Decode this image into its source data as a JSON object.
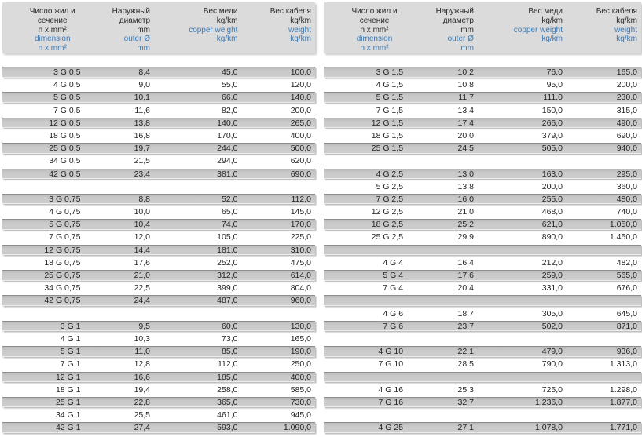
{
  "colors": {
    "page_background": "#ffffff",
    "header_background": "#dbdbdb",
    "shaded_row": "#c8c8c8",
    "shaded_row_top_border": "#8d8d8d",
    "text": "#242424",
    "accent_blue": "#3d79b3"
  },
  "header": {
    "columns": [
      {
        "black": [
          "Число жил и",
          "сечение",
          "n x mm²"
        ],
        "blue": [
          "dimension",
          "n x mm²"
        ]
      },
      {
        "black": [
          "Наружный",
          "диаметр",
          "mm"
        ],
        "blue": [
          "outer Ø",
          "mm"
        ]
      },
      {
        "black": [
          "Вес меди",
          "kg/km"
        ],
        "blue": [
          "copper weight",
          "kg/km"
        ]
      },
      {
        "black": [
          "Вес кабеля",
          "kg/km"
        ],
        "blue": [
          "weight",
          "kg/km"
        ]
      }
    ]
  },
  "tables": [
    {
      "name": "left",
      "rows": [
        [
          "3 G 0,5",
          "8,4",
          "45,0",
          "100,0"
        ],
        [
          "4 G 0,5",
          "9,0",
          "55,0",
          "120,0"
        ],
        [
          "5 G 0,5",
          "10,1",
          "66,0",
          "140,0"
        ],
        [
          "7 G 0,5",
          "11,6",
          "82,0",
          "200,0"
        ],
        [
          "12 G 0,5",
          "13,8",
          "140,0",
          "265,0"
        ],
        [
          "18 G 0,5",
          "16,8",
          "170,0",
          "400,0"
        ],
        [
          "25 G 0,5",
          "19,7",
          "244,0",
          "500,0"
        ],
        [
          "34 G 0,5",
          "21,5",
          "294,0",
          "620,0"
        ],
        [
          "42 G 0,5",
          "23,4",
          "381,0",
          "690,0"
        ],
        null,
        [
          "3 G 0,75",
          "8,8",
          "52,0",
          "112,0"
        ],
        [
          "4 G 0,75",
          "10,0",
          "65,0",
          "145,0"
        ],
        [
          "5 G 0,75",
          "10,4",
          "74,0",
          "170,0"
        ],
        [
          "7 G 0,75",
          "12,0",
          "105,0",
          "225,0"
        ],
        [
          "12 G 0,75",
          "14,4",
          "181,0",
          "310,0"
        ],
        [
          "18 G 0,75",
          "17,6",
          "252,0",
          "475,0"
        ],
        [
          "25 G 0,75",
          "21,0",
          "312,0",
          "614,0"
        ],
        [
          "34 G 0,75",
          "22,5",
          "399,0",
          "804,0"
        ],
        [
          "42 G 0,75",
          "24,4",
          "487,0",
          "960,0"
        ],
        null,
        [
          "3 G 1",
          "9,5",
          "60,0",
          "130,0"
        ],
        [
          "4 G 1",
          "10,3",
          "73,0",
          "165,0"
        ],
        [
          "5 G 1",
          "11,0",
          "85,0",
          "190,0"
        ],
        [
          "7 G 1",
          "12,8",
          "112,0",
          "250,0"
        ],
        [
          "12 G 1",
          "16,6",
          "185,0",
          "400,0"
        ],
        [
          "18 G 1",
          "19,4",
          "258,0",
          "585,0"
        ],
        [
          "25 G 1",
          "22,8",
          "365,0",
          "730,0"
        ],
        [
          "34 G 1",
          "25,5",
          "461,0",
          "945,0"
        ],
        [
          "42 G 1",
          "27,4",
          "593,0",
          "1.090,0"
        ]
      ]
    },
    {
      "name": "right",
      "rows": [
        [
          "3 G 1,5",
          "10,2",
          "76,0",
          "165,0"
        ],
        [
          "4 G 1,5",
          "10,8",
          "95,0",
          "200,0"
        ],
        [
          "5 G 1,5",
          "11,7",
          "111,0",
          "230,0"
        ],
        [
          "7 G 1,5",
          "13,4",
          "150,0",
          "315,0"
        ],
        [
          "12 G 1,5",
          "17,4",
          "266,0",
          "490,0"
        ],
        [
          "18 G 1,5",
          "20,0",
          "379,0",
          "690,0"
        ],
        [
          "25 G 1,5",
          "24,5",
          "505,0",
          "940,0"
        ],
        null,
        [
          "4 G 2,5",
          "13,0",
          "163,0",
          "295,0"
        ],
        [
          "5 G 2,5",
          "13,8",
          "200,0",
          "360,0"
        ],
        [
          "7 G 2,5",
          "16,0",
          "255,0",
          "480,0"
        ],
        [
          "12 G 2,5",
          "21,0",
          "468,0",
          "740,0"
        ],
        [
          "18 G 2,5",
          "25,2",
          "621,0",
          "1.050,0"
        ],
        [
          "25 G 2,5",
          "29,9",
          "890,0",
          "1.450,0"
        ],
        null,
        [
          "4 G 4",
          "16,4",
          "212,0",
          "482,0"
        ],
        [
          "5 G 4",
          "17,6",
          "259,0",
          "565,0"
        ],
        [
          "7 G 4",
          "20,4",
          "331,0",
          "676,0"
        ],
        null,
        [
          "4 G 6",
          "18,7",
          "305,0",
          "645,0"
        ],
        [
          "7 G 6",
          "23,7",
          "502,0",
          "871,0"
        ],
        null,
        [
          "4 G 10",
          "22,1",
          "479,0",
          "936,0"
        ],
        [
          "7 G 10",
          "28,5",
          "790,0",
          "1.313,0"
        ],
        null,
        [
          "4 G 16",
          "25,3",
          "725,0",
          "1.298,0"
        ],
        [
          "7 G 16",
          "32,7",
          "1.236,0",
          "1.877,0"
        ],
        null,
        [
          "4 G 25",
          "27,1",
          "1.078,0",
          "1.771,0"
        ]
      ]
    }
  ]
}
